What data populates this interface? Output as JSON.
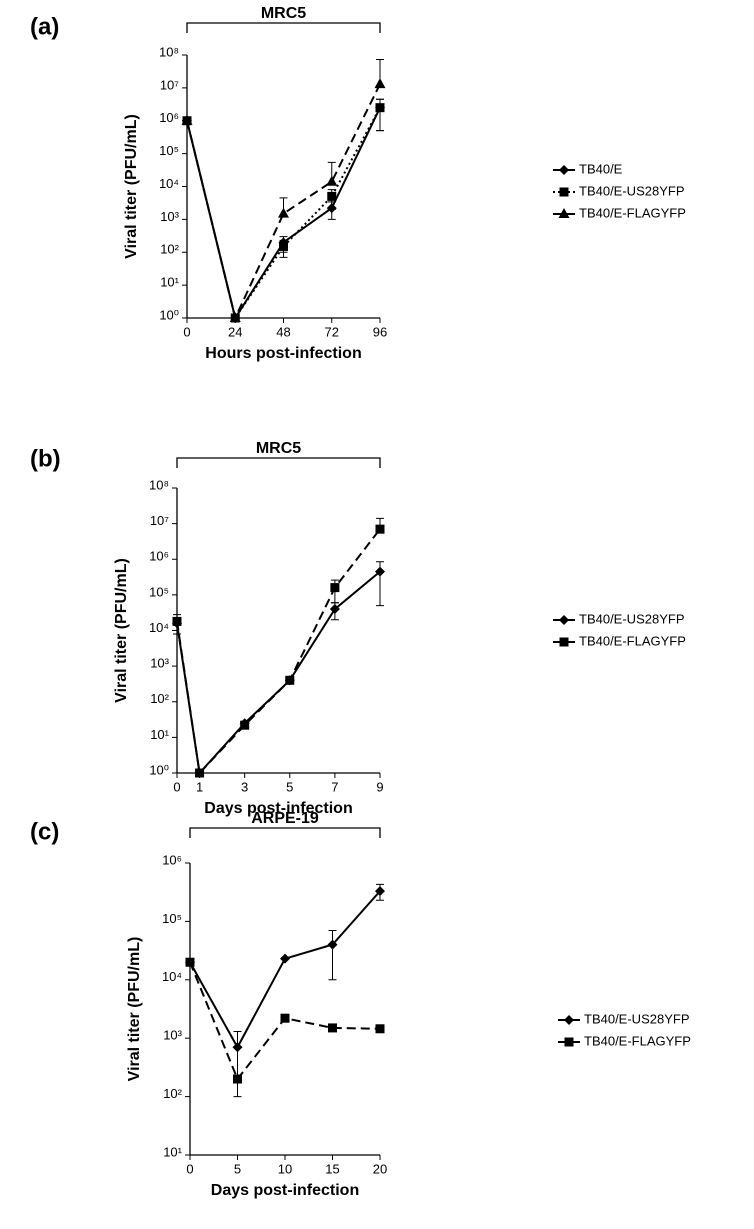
{
  "chart_data": [
    {
      "type": "line",
      "panel": "(a)",
      "title": "MRC5",
      "x_label": "Hours post-infection",
      "y_label": "Viral titer (PFU/mL)",
      "x": [
        0,
        24,
        48,
        72,
        96
      ],
      "xlim": [
        0,
        96
      ],
      "xticks": [
        0,
        24,
        48,
        72,
        96
      ],
      "ylim": [
        1,
        100000000
      ],
      "log_y": true,
      "yticks": [
        {
          "value": 1,
          "label": "10⁰"
        },
        {
          "value": 10,
          "label": "10¹"
        },
        {
          "value": 100,
          "label": "10²"
        },
        {
          "value": 1000,
          "label": "10³"
        },
        {
          "value": 10000,
          "label": "10⁴"
        },
        {
          "value": 100000,
          "label": "10⁵"
        },
        {
          "value": 1000000,
          "label": "10⁶"
        },
        {
          "value": 10000000,
          "label": "10⁷"
        },
        {
          "value": 100000000,
          "label": "10⁸"
        }
      ],
      "series": [
        {
          "name": "TB40/E",
          "color": "#000000",
          "marker": "diamond",
          "dash": "solid",
          "values": [
            1000000,
            1,
            200,
            2200,
            2500000
          ],
          "errors": [
            null,
            null,
            100,
            1200,
            2000000
          ]
        },
        {
          "name": "TB40/E-US28YFP",
          "color": "#000000",
          "marker": "square",
          "dash": "dotted",
          "values": [
            1000000,
            1,
            150,
            5000,
            2500000
          ],
          "errors": [
            null,
            null,
            80,
            3000,
            2000000
          ]
        },
        {
          "name": "TB40/E-FLAGYFP",
          "color": "#000000",
          "marker": "triangle",
          "dash": "dashed",
          "values": [
            1000000,
            1,
            1500,
            14000,
            13000000
          ],
          "errors": [
            null,
            null,
            3000,
            40000,
            60000000
          ]
        }
      ]
    },
    {
      "type": "line",
      "panel": "(b)",
      "title": "MRC5",
      "x_label": "Days post-infection",
      "y_label": "Viral titer (PFU/mL)",
      "x": [
        0,
        1,
        3,
        5,
        7,
        9
      ],
      "xlim": [
        0,
        9
      ],
      "xticks": [
        0,
        1,
        3,
        5,
        7,
        9
      ],
      "ylim": [
        1,
        100000000
      ],
      "log_y": true,
      "yticks": [
        {
          "value": 1,
          "label": "10⁰"
        },
        {
          "value": 10,
          "label": "10¹"
        },
        {
          "value": 100,
          "label": "10²"
        },
        {
          "value": 1000,
          "label": "10³"
        },
        {
          "value": 10000,
          "label": "10⁴"
        },
        {
          "value": 100000,
          "label": "10⁵"
        },
        {
          "value": 1000000,
          "label": "10⁶"
        },
        {
          "value": 10000000,
          "label": "10⁷"
        },
        {
          "value": 100000000,
          "label": "10⁸"
        }
      ],
      "series": [
        {
          "name": "TB40/E-US28YFP",
          "color": "#000000",
          "marker": "diamond",
          "dash": "solid",
          "values": [
            16000,
            1,
            25,
            400,
            40000,
            450000
          ],
          "errors": [
            null,
            null,
            null,
            null,
            20000,
            400000
          ]
        },
        {
          "name": "TB40/E-FLAGYFP",
          "color": "#000000",
          "marker": "square",
          "dash": "dashed",
          "values": [
            18000,
            1,
            22,
            400,
            160000,
            7000000
          ],
          "errors": [
            10000,
            null,
            null,
            null,
            100000,
            7000000
          ]
        }
      ]
    },
    {
      "type": "line",
      "panel": "(c)",
      "title": "ARPE-19",
      "x_label": "Days post-infection",
      "y_label": "Viral titer (PFU/mL)",
      "x": [
        0,
        5,
        10,
        15,
        20
      ],
      "xlim": [
        0,
        20
      ],
      "xticks": [
        0,
        5,
        10,
        15,
        20
      ],
      "ylim": [
        10,
        1000000
      ],
      "log_y": true,
      "yticks": [
        {
          "value": 10,
          "label": "10¹"
        },
        {
          "value": 100,
          "label": "10²"
        },
        {
          "value": 1000,
          "label": "10³"
        },
        {
          "value": 10000,
          "label": "10⁴"
        },
        {
          "value": 100000,
          "label": "10⁵"
        },
        {
          "value": 1000000,
          "label": "10⁶"
        }
      ],
      "series": [
        {
          "name": "TB40/E-US28YFP",
          "color": "#000000",
          "marker": "diamond",
          "dash": "solid",
          "values": [
            20000,
            700,
            23000,
            40000,
            330000
          ],
          "errors": [
            null,
            600,
            null,
            30000,
            100000
          ]
        },
        {
          "name": "TB40/E-FLAGYFP",
          "color": "#000000",
          "marker": "square",
          "dash": "dashed",
          "values": [
            20000,
            200,
            2200,
            1500,
            1450
          ],
          "errors": [
            null,
            null,
            null,
            null,
            null
          ]
        }
      ]
    }
  ]
}
